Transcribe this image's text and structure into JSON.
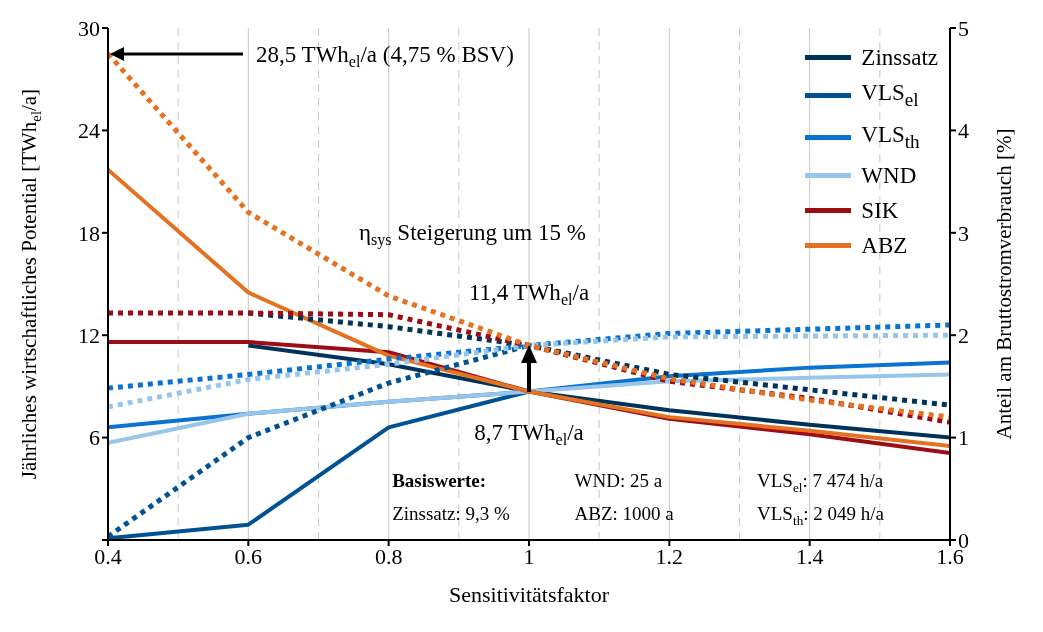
{
  "chart_data": {
    "type": "line",
    "xlabel": "Sensitivitätsfaktor",
    "ylabel": "Jährliches wirtschaftliches Potential [TWh$_{el}$/a]",
    "y2label": "Anteil am Bruttostromverbrauch [%]",
    "x": [
      0.4,
      0.6,
      0.8,
      1,
      1.2,
      1.4,
      1.6
    ],
    "xlim": [
      0.4,
      1.6
    ],
    "xticks": [
      0.4,
      0.6,
      0.8,
      1,
      1.2,
      1.4,
      1.6
    ],
    "ylim": [
      0,
      30
    ],
    "yticks": [
      {
        "value": 0,
        "label": null
      },
      6,
      12,
      18,
      24,
      30
    ],
    "y2lim": [
      0,
      5
    ],
    "y2ticks": [
      0,
      1,
      2,
      3,
      4,
      5
    ],
    "grid": true,
    "legend": "top right",
    "marker": "none",
    "series": [
      {
        "name": "Zinssatz",
        "color": "#003359",
        "line_style": "solid",
        "values": [
          null,
          11.4,
          10.3,
          8.7,
          7.6,
          6.75,
          6.0
        ]
      },
      {
        "name": "VLS$_{el}$",
        "color": "#005293",
        "line_style": "solid",
        "values": [
          0.1,
          0.9,
          6.6,
          8.7,
          null,
          null,
          null
        ]
      },
      {
        "name": "VLS$_{th}$",
        "color": "#0a73cf",
        "line_style": "solid",
        "values": [
          6.6,
          7.4,
          8.1,
          8.7,
          9.6,
          10.1,
          10.4
        ]
      },
      {
        "name": "WND",
        "color": "#98c6ea",
        "line_style": "solid",
        "values": [
          5.7,
          7.4,
          8.1,
          8.7,
          9.3,
          9.5,
          9.7
        ]
      },
      {
        "name": "SIK",
        "color": "#9c0d16",
        "line_style": "solid",
        "values": [
          11.6,
          11.6,
          11.0,
          8.7,
          7.1,
          6.2,
          5.1
        ]
      },
      {
        "name": "ABZ",
        "color": "#e37222",
        "line_style": "solid",
        "values": [
          21.7,
          14.5,
          10.8,
          8.7,
          7.2,
          6.4,
          5.5
        ]
      },
      {
        "color": "#003359",
        "line_style": "dotted",
        "values": [
          null,
          13.3,
          12.5,
          11.4,
          9.7,
          8.8,
          7.9
        ]
      },
      {
        "color": "#005293",
        "line_style": "dotted",
        "values": [
          0.2,
          6.0,
          9.2,
          11.4,
          null,
          null,
          null
        ]
      },
      {
        "color": "#0a73cf",
        "line_style": "dotted",
        "values": [
          8.9,
          9.7,
          10.6,
          11.4,
          12.1,
          12.35,
          12.6
        ]
      },
      {
        "color": "#98c6ea",
        "line_style": "dotted",
        "values": [
          7.8,
          9.4,
          10.3,
          11.4,
          11.9,
          11.95,
          12.0
        ]
      },
      {
        "color": "#9c0d16",
        "line_style": "dotted",
        "values": [
          13.3,
          13.3,
          13.2,
          11.4,
          9.3,
          8.3,
          6.9
        ]
      },
      {
        "color": "#e37222",
        "line_style": "dotted",
        "values": [
          28.5,
          19.2,
          14.3,
          11.4,
          9.45,
          8.2,
          7.2
        ]
      }
    ],
    "annotations": [
      "28,5 TWh$_{el}$/a (4,75 % BSV)",
      "11,4 TWh$_{el}$/a",
      "8,7 TWh$_{el}$/a",
      "η$_{sys}$ Steigerung um 15 %",
      "Basiswerte:",
      "WND: 25 a",
      "VLS$_{el}$: 7 474 h/a",
      "Zinssatz: 9,3 %",
      "ABZ: 1000 a",
      "VLS$_{th}$: 2 049 h/a"
    ]
  }
}
